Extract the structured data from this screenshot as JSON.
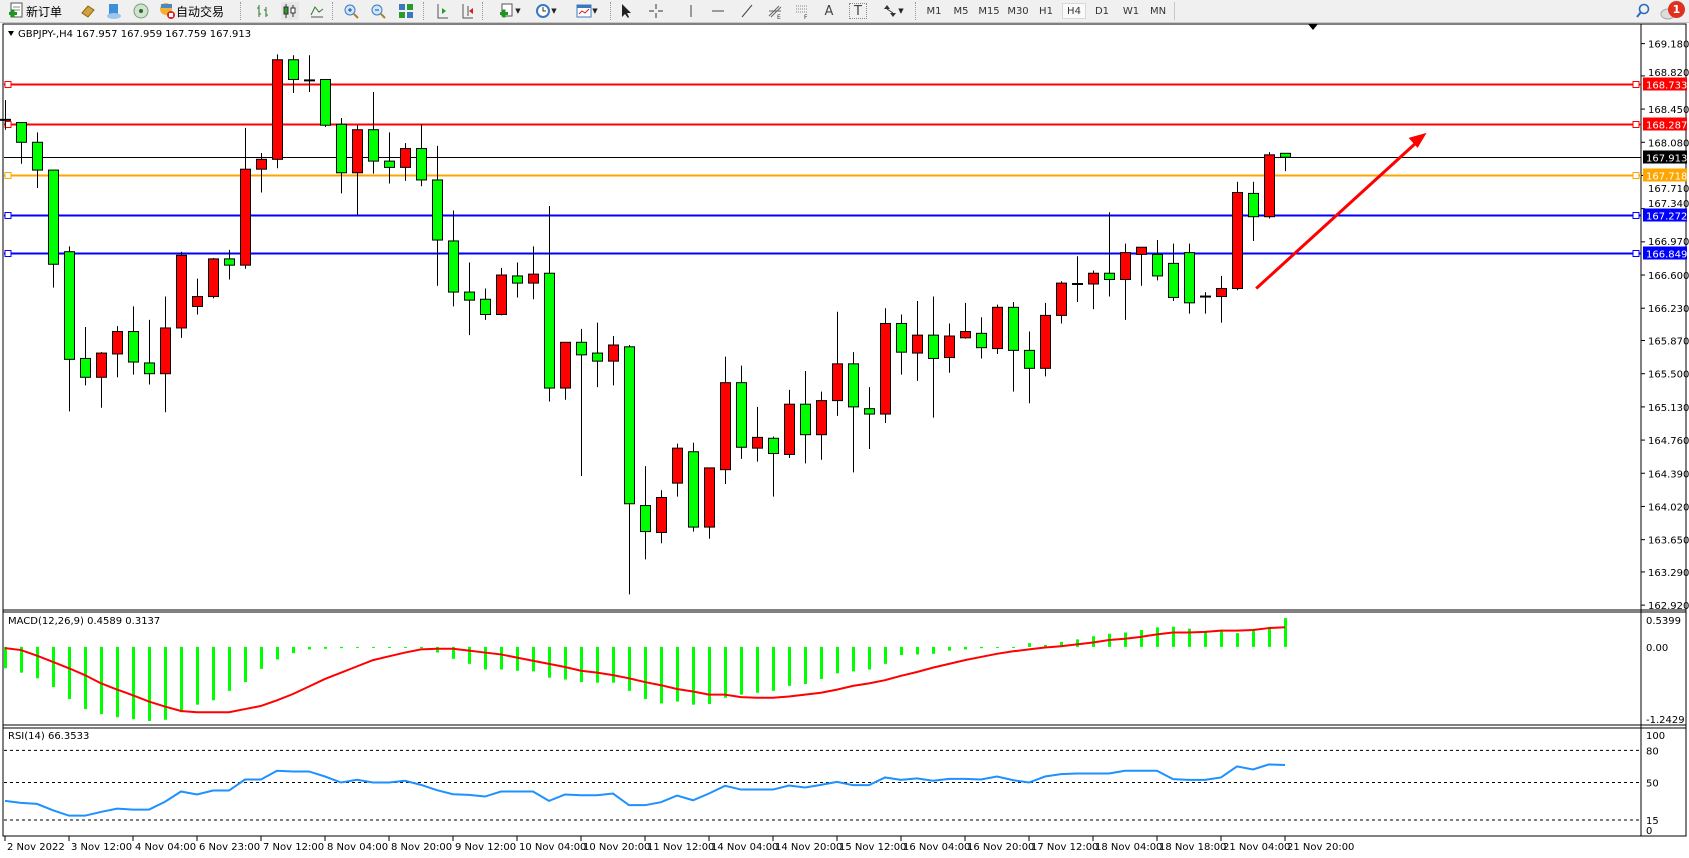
{
  "toolbar": {
    "new_order_label": "新订单",
    "auto_trading_label": "自动交易",
    "icons": [
      "new-order-icon",
      "market-watch-icon",
      "navigator-icon",
      "signals-icon",
      "auto-trading-icon",
      "bar-chart-icon",
      "candlestick-icon",
      "line-chart-icon",
      "zoom-in-icon",
      "zoom-out-icon",
      "tile-windows-icon",
      "chart-shift-icon",
      "autoscroll-icon",
      "new-chart-icon",
      "periods-clock-icon",
      "templates-icon",
      "cursor-icon",
      "crosshair-icon",
      "vertical-line-icon",
      "horizontal-line-icon",
      "trendline-icon",
      "fibonacci-icon",
      "fibo-fan-icon",
      "text-icon",
      "text-label-icon",
      "arrows-icon",
      "search-icon",
      "notification-icon"
    ],
    "timeframes": [
      "M1",
      "M5",
      "M15",
      "M30",
      "H1",
      "H4",
      "D1",
      "W1",
      "MN"
    ],
    "active_timeframe": "H4",
    "text_tool_label": "A",
    "text_label_tool": "T",
    "notification_count": "1"
  },
  "chart": {
    "header": "GBPJPY-,H4  167.957 167.959 167.759 167.913",
    "colors": {
      "bull": "#ff0000",
      "bear": "#00ff00",
      "background": "#ffffff",
      "grid_text": "#000000"
    }
  },
  "chart_data": [
    {
      "type": "candlestick",
      "symbol": "GBPJPY-",
      "timeframe": "H4",
      "ohlc_note_fields": [
        "open",
        "high",
        "low",
        "close"
      ],
      "y_ticks": [
        "169.180",
        "168.820",
        "168.450",
        "168.080",
        "167.710",
        "167.340",
        "166.970",
        "166.600",
        "166.230",
        "165.870",
        "165.500",
        "165.130",
        "164.760",
        "164.390",
        "164.020",
        "163.650",
        "163.290",
        "162.920"
      ],
      "ylim": [
        162.87,
        169.39
      ],
      "x_tick_labels": [
        "2 Nov 2022",
        "3 Nov 12:00",
        "4 Nov 04:00",
        "6 Nov 23:00",
        "7 Nov 12:00",
        "8 Nov 04:00",
        "8 Nov 20:00",
        "9 Nov 12:00",
        "10 Nov 04:00",
        "10 Nov 20:00",
        "11 Nov 12:00",
        "14 Nov 04:00",
        "14 Nov 20:00",
        "15 Nov 12:00",
        "16 Nov 04:00",
        "16 Nov 20:00",
        "17 Nov 12:00",
        "18 Nov 04:00",
        "18 Nov 18:00",
        "21 Nov 04:00",
        "21 Nov 20:00"
      ],
      "candles": [
        [
          168.33,
          168.55,
          168.22,
          168.33
        ],
        [
          168.3,
          168.3,
          167.84,
          168.08
        ],
        [
          168.08,
          168.19,
          167.57,
          167.77
        ],
        [
          167.77,
          167.77,
          166.46,
          166.72
        ],
        [
          166.86,
          166.92,
          165.08,
          165.66
        ],
        [
          165.67,
          166.02,
          165.37,
          165.46
        ],
        [
          165.46,
          165.74,
          165.12,
          165.73
        ],
        [
          165.72,
          166.03,
          165.46,
          165.97
        ],
        [
          165.97,
          166.25,
          165.49,
          165.63
        ],
        [
          165.62,
          166.1,
          165.38,
          165.5
        ],
        [
          165.5,
          166.36,
          165.07,
          166.01
        ],
        [
          166.01,
          166.86,
          165.9,
          166.82
        ],
        [
          166.25,
          166.56,
          166.16,
          166.36
        ],
        [
          166.36,
          166.79,
          166.34,
          166.78
        ],
        [
          166.78,
          166.88,
          166.55,
          166.71
        ],
        [
          166.71,
          168.24,
          166.67,
          167.78
        ],
        [
          167.78,
          167.96,
          167.52,
          167.89
        ],
        [
          167.89,
          169.06,
          167.79,
          169.0
        ],
        [
          169.0,
          169.05,
          168.63,
          168.78
        ],
        [
          168.77,
          169.05,
          168.64,
          168.77
        ],
        [
          168.78,
          168.78,
          168.25,
          168.27
        ],
        [
          168.28,
          168.35,
          167.51,
          167.74
        ],
        [
          167.74,
          168.27,
          167.27,
          168.22
        ],
        [
          168.22,
          168.64,
          167.73,
          167.87
        ],
        [
          167.87,
          168.19,
          167.62,
          167.8
        ],
        [
          167.8,
          168.07,
          167.65,
          168.01
        ],
        [
          168.01,
          168.28,
          167.59,
          167.66
        ],
        [
          167.66,
          168.04,
          166.48,
          166.99
        ],
        [
          166.98,
          167.32,
          166.25,
          166.41
        ],
        [
          166.41,
          166.74,
          165.93,
          166.32
        ],
        [
          166.33,
          166.45,
          166.1,
          166.16
        ],
        [
          166.16,
          166.68,
          166.15,
          166.6
        ],
        [
          166.59,
          166.74,
          166.35,
          166.51
        ],
        [
          166.51,
          166.92,
          166.33,
          166.61
        ],
        [
          166.62,
          167.37,
          165.19,
          165.34
        ],
        [
          165.34,
          165.85,
          165.21,
          165.85
        ],
        [
          165.85,
          166.0,
          164.36,
          165.71
        ],
        [
          165.73,
          166.07,
          165.35,
          165.64
        ],
        [
          165.64,
          165.92,
          165.37,
          165.82
        ],
        [
          165.8,
          165.82,
          163.04,
          164.05
        ],
        [
          164.03,
          164.47,
          163.43,
          163.74
        ],
        [
          163.73,
          164.2,
          163.61,
          164.12
        ],
        [
          164.28,
          164.72,
          164.13,
          164.67
        ],
        [
          164.63,
          164.73,
          163.74,
          163.79
        ],
        [
          163.79,
          164.45,
          163.66,
          164.45
        ],
        [
          164.43,
          165.69,
          164.27,
          165.4
        ],
        [
          165.4,
          165.59,
          164.55,
          164.68
        ],
        [
          164.67,
          165.13,
          164.52,
          164.79
        ],
        [
          164.78,
          164.8,
          164.13,
          164.61
        ],
        [
          164.6,
          165.32,
          164.56,
          165.16
        ],
        [
          165.16,
          165.53,
          164.5,
          164.82
        ],
        [
          164.82,
          165.3,
          164.54,
          165.2
        ],
        [
          165.2,
          166.19,
          165.03,
          165.61
        ],
        [
          165.61,
          165.74,
          164.4,
          165.13
        ],
        [
          165.11,
          165.35,
          164.66,
          165.05
        ],
        [
          165.05,
          166.23,
          164.95,
          166.06
        ],
        [
          166.06,
          166.16,
          165.49,
          165.74
        ],
        [
          165.73,
          166.31,
          165.42,
          165.93
        ],
        [
          165.93,
          166.36,
          165.01,
          165.67
        ],
        [
          165.68,
          166.06,
          165.51,
          165.92
        ],
        [
          165.9,
          166.29,
          165.89,
          165.97
        ],
        [
          165.95,
          166.13,
          165.67,
          165.79
        ],
        [
          165.78,
          166.27,
          165.72,
          166.24
        ],
        [
          166.24,
          166.3,
          165.3,
          165.76
        ],
        [
          165.76,
          165.97,
          165.17,
          165.56
        ],
        [
          165.56,
          166.29,
          165.47,
          166.15
        ],
        [
          166.15,
          166.53,
          166.06,
          166.51
        ],
        [
          166.5,
          166.81,
          166.3,
          166.5
        ],
        [
          166.5,
          166.65,
          166.22,
          166.62
        ],
        [
          166.62,
          167.3,
          166.36,
          166.55
        ],
        [
          166.55,
          166.95,
          166.1,
          166.85
        ],
        [
          166.83,
          166.91,
          166.48,
          166.91
        ],
        [
          166.83,
          166.99,
          166.54,
          166.59
        ],
        [
          166.73,
          166.95,
          166.31,
          166.35
        ],
        [
          166.85,
          166.95,
          166.17,
          166.29
        ],
        [
          166.36,
          166.41,
          166.17,
          166.36
        ],
        [
          166.36,
          166.59,
          166.07,
          166.45
        ],
        [
          166.45,
          167.64,
          166.43,
          167.52
        ],
        [
          167.51,
          167.64,
          166.98,
          167.25
        ],
        [
          167.25,
          167.97,
          167.23,
          167.94
        ],
        [
          167.957,
          167.959,
          167.759,
          167.913
        ]
      ],
      "levels": [
        {
          "price": 168.733,
          "label": "168.733",
          "color": "#ff0000"
        },
        {
          "price": 168.287,
          "label": "168.287",
          "color": "#ff0000"
        },
        {
          "price": 167.913,
          "label": "167.913",
          "color": "#000000",
          "thin": true
        },
        {
          "price": 167.718,
          "label": "167.718",
          "color": "#ffa500"
        },
        {
          "price": 167.272,
          "label": "167.272",
          "color": "#0000ff"
        },
        {
          "price": 166.849,
          "label": "166.849",
          "color": "#0000ff"
        }
      ],
      "arrow": {
        "from": {
          "candle": 78.2,
          "price": 166.45
        },
        "to": {
          "candle": 88.6,
          "price": 168.14
        },
        "color": "#ff0000"
      }
    },
    {
      "type": "bar+line",
      "title": "MACD(12,26,9) 0.4589 0.3137",
      "ylim": [
        -1.2429,
        0.5399
      ],
      "y_ticks": [
        "0.5399",
        "0.00",
        "-1.2429"
      ],
      "histogram": [
        -0.34,
        -0.41,
        -0.5,
        -0.64,
        -0.83,
        -0.99,
        -1.07,
        -1.12,
        -1.15,
        -1.18,
        -1.16,
        -1.04,
        -0.92,
        -0.85,
        -0.7,
        -0.56,
        -0.35,
        -0.2,
        -0.1,
        -0.04,
        -0.03,
        -0.02,
        -0.01,
        0.0,
        0.0,
        0.0,
        -0.02,
        -0.09,
        -0.19,
        -0.27,
        -0.36,
        -0.36,
        -0.38,
        -0.39,
        -0.49,
        -0.52,
        -0.56,
        -0.57,
        -0.57,
        -0.7,
        -0.83,
        -0.9,
        -0.87,
        -0.92,
        -0.91,
        -0.81,
        -0.76,
        -0.73,
        -0.7,
        -0.62,
        -0.59,
        -0.51,
        -0.42,
        -0.39,
        -0.36,
        -0.27,
        -0.13,
        -0.12,
        -0.11,
        -0.06,
        -0.04,
        -0.02,
        0.0,
        -0.01,
        0.06,
        0.03,
        0.08,
        0.12,
        0.17,
        0.21,
        0.23,
        0.27,
        0.31,
        0.32,
        0.29,
        0.25,
        0.27,
        0.22,
        0.28,
        0.32,
        0.4589
      ],
      "signal": [
        -0.02,
        -0.05,
        -0.14,
        -0.24,
        -0.34,
        -0.45,
        -0.58,
        -0.68,
        -0.77,
        -0.87,
        -0.95,
        -1.02,
        -1.04,
        -1.04,
        -1.04,
        -0.99,
        -0.94,
        -0.85,
        -0.75,
        -0.63,
        -0.51,
        -0.41,
        -0.31,
        -0.21,
        -0.15,
        -0.09,
        -0.04,
        -0.03,
        -0.03,
        -0.06,
        -0.09,
        -0.12,
        -0.17,
        -0.22,
        -0.27,
        -0.32,
        -0.38,
        -0.41,
        -0.45,
        -0.5,
        -0.56,
        -0.61,
        -0.67,
        -0.71,
        -0.76,
        -0.76,
        -0.8,
        -0.81,
        -0.81,
        -0.79,
        -0.76,
        -0.73,
        -0.68,
        -0.62,
        -0.58,
        -0.53,
        -0.46,
        -0.4,
        -0.33,
        -0.27,
        -0.21,
        -0.16,
        -0.11,
        -0.07,
        -0.04,
        -0.01,
        0.01,
        0.04,
        0.07,
        0.11,
        0.13,
        0.16,
        0.2,
        0.23,
        0.23,
        0.24,
        0.26,
        0.26,
        0.27,
        0.3,
        0.3137
      ],
      "colors": {
        "histogram": "#00ff00",
        "signal": "#ff0000"
      }
    },
    {
      "type": "line",
      "title": "RSI(14) 66.3533",
      "ylim": [
        0,
        100
      ],
      "y_ticks": [
        "100",
        "80",
        "50",
        "15",
        "0"
      ],
      "levels": [
        80,
        50,
        15
      ],
      "values": [
        32.8,
        31,
        30,
        24,
        19,
        19,
        22.5,
        25.6,
        24.7,
        24.7,
        32,
        41.6,
        38.8,
        42.5,
        42.5,
        52.8,
        52.8,
        61,
        60.3,
        60.3,
        55.6,
        50,
        52.5,
        50,
        50,
        51.6,
        47.8,
        42.8,
        39,
        38.4,
        36.9,
        41.6,
        41.6,
        41.6,
        32.8,
        38.8,
        38.1,
        38.1,
        39.7,
        28.8,
        28.8,
        31.6,
        37.8,
        33.4,
        39.7,
        46.9,
        43.4,
        43.4,
        43.4,
        47.2,
        45.3,
        47.8,
        50.6,
        47.5,
        47.5,
        54.7,
        52.5,
        53.8,
        51.6,
        53.4,
        53.4,
        52.8,
        55.6,
        52.2,
        50,
        55.6,
        57.8,
        58.4,
        58.4,
        58.4,
        61,
        61,
        61,
        53.1,
        52.5,
        52.5,
        54.7,
        65,
        62.2,
        66.9,
        66.3533
      ],
      "color": "#1e90ff"
    }
  ]
}
